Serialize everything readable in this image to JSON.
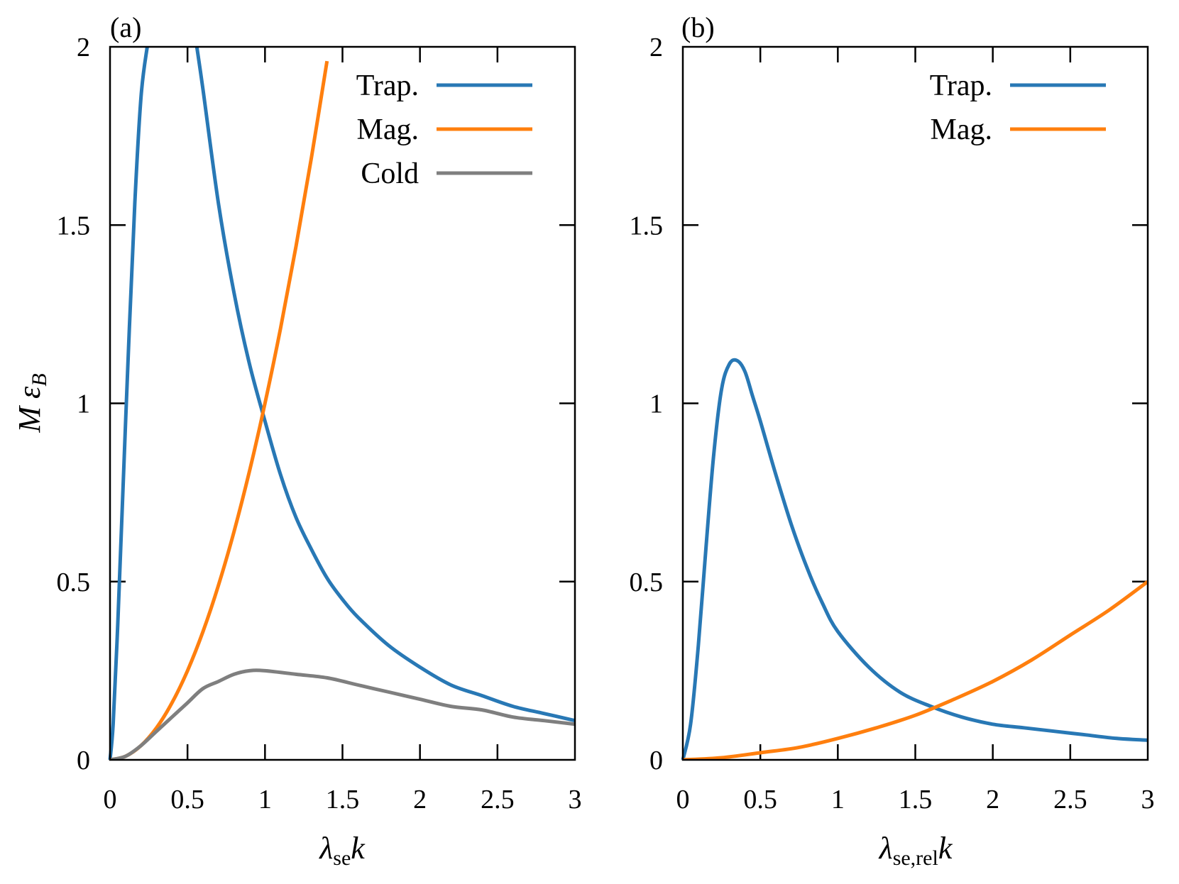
{
  "colors": {
    "trap": "#2878b5",
    "mag": "#ff7f0e",
    "cold": "#7f7f7f"
  },
  "chart_data": [
    {
      "panel_label": "(a)",
      "type": "line",
      "xlabel": {
        "symbol": "λ",
        "sub": "se",
        "var": "k"
      },
      "ylabel": {
        "var": "M ε",
        "sub": "B"
      },
      "xlim": [
        0,
        3
      ],
      "ylim": [
        0,
        2
      ],
      "xticks": [
        "0",
        "0.5",
        "1",
        "1.5",
        "2",
        "2.5",
        "3"
      ],
      "yticks": [
        "0",
        "0.5",
        "1",
        "1.5",
        "2"
      ],
      "legend": "top-right",
      "grid": false,
      "series": [
        {
          "name": "Trap.",
          "color_key": "trap",
          "x": [
            0,
            0.02,
            0.05,
            0.08,
            0.12,
            0.16,
            0.2,
            0.24
          ],
          "y": [
            0,
            0.1,
            0.38,
            0.72,
            1.16,
            1.56,
            1.86,
            2.0
          ]
        },
        {
          "name": "Trap.",
          "color_key": "trap",
          "legend": false,
          "x": [
            0.56,
            0.6,
            0.7,
            0.8,
            0.9,
            1.0,
            1.1,
            1.2,
            1.3,
            1.4,
            1.5,
            1.6,
            1.8,
            2.0,
            2.2,
            2.4,
            2.6,
            2.8,
            3.0
          ],
          "y": [
            2.0,
            1.88,
            1.56,
            1.31,
            1.11,
            0.95,
            0.8,
            0.68,
            0.59,
            0.51,
            0.45,
            0.4,
            0.32,
            0.26,
            0.21,
            0.18,
            0.15,
            0.13,
            0.11
          ]
        },
        {
          "name": "Mag.",
          "color_key": "mag",
          "x": [
            0,
            0.1,
            0.2,
            0.3,
            0.4,
            0.5,
            0.6,
            0.7,
            0.8,
            0.9,
            1.0,
            1.1,
            1.2,
            1.3,
            1.4
          ],
          "y": [
            0,
            0.01,
            0.04,
            0.09,
            0.16,
            0.25,
            0.36,
            0.49,
            0.64,
            0.81,
            1.0,
            1.21,
            1.44,
            1.69,
            1.96
          ]
        },
        {
          "name": "Cold",
          "color_key": "cold",
          "x": [
            0,
            0.1,
            0.2,
            0.3,
            0.4,
            0.5,
            0.6,
            0.7,
            0.8,
            0.9,
            1.0,
            1.2,
            1.4,
            1.6,
            1.8,
            2.0,
            2.2,
            2.4,
            2.6,
            2.8,
            3.0
          ],
          "y": [
            0,
            0.01,
            0.04,
            0.08,
            0.12,
            0.16,
            0.2,
            0.22,
            0.24,
            0.25,
            0.25,
            0.24,
            0.23,
            0.21,
            0.19,
            0.17,
            0.15,
            0.14,
            0.12,
            0.11,
            0.1
          ]
        }
      ]
    },
    {
      "panel_label": "(b)",
      "type": "line",
      "xlabel": {
        "symbol": "λ",
        "sub": "se,rel",
        "var": "k"
      },
      "ylabel": null,
      "xlim": [
        0,
        3
      ],
      "ylim": [
        0,
        2
      ],
      "xticks": [
        "0",
        "0.5",
        "1",
        "1.5",
        "2",
        "2.5",
        "3"
      ],
      "yticks": [
        "0",
        "0.5",
        "1",
        "1.5",
        "2"
      ],
      "legend": "top-right",
      "grid": false,
      "series": [
        {
          "name": "Trap.",
          "color_key": "trap",
          "x": [
            0,
            0.05,
            0.1,
            0.15,
            0.2,
            0.25,
            0.3,
            0.35,
            0.4,
            0.45,
            0.5,
            0.6,
            0.7,
            0.8,
            0.9,
            1.0,
            1.2,
            1.4,
            1.6,
            1.8,
            2.0,
            2.2,
            2.4,
            2.6,
            2.8,
            3.0
          ],
          "y": [
            0,
            0.1,
            0.32,
            0.6,
            0.86,
            1.04,
            1.11,
            1.12,
            1.09,
            1.02,
            0.95,
            0.8,
            0.66,
            0.54,
            0.44,
            0.36,
            0.26,
            0.19,
            0.15,
            0.12,
            0.1,
            0.09,
            0.08,
            0.07,
            0.06,
            0.055
          ]
        },
        {
          "name": "Mag.",
          "color_key": "mag",
          "x": [
            0,
            0.25,
            0.5,
            0.75,
            1.0,
            1.25,
            1.5,
            1.75,
            2.0,
            2.25,
            2.5,
            2.75,
            3.0
          ],
          "y": [
            0,
            0.006,
            0.02,
            0.035,
            0.06,
            0.09,
            0.125,
            0.17,
            0.22,
            0.28,
            0.35,
            0.42,
            0.5
          ]
        }
      ]
    }
  ]
}
